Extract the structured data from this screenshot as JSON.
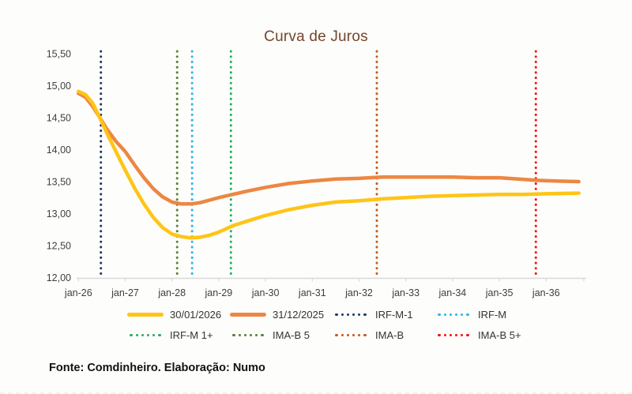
{
  "title": "Curva de Juros",
  "footer": "Fonte: Comdinheiro. Elaboração: Numo",
  "colors": {
    "title": "#74462A",
    "axis_text": "#3F3F3F",
    "axis_line": "#D9D9D9",
    "background": "#FDFDFB",
    "legend_text": "#333333"
  },
  "chart_data": {
    "type": "line",
    "title": "Curva de Juros",
    "x_axis": {
      "labels": [
        "jan-26",
        "jan-27",
        "jan-28",
        "jan-29",
        "jan-30",
        "jan-31",
        "jan-32",
        "jan-33",
        "jan-34",
        "jan-35",
        "jan-36"
      ],
      "unit": "years_from_jan-26",
      "range_years": [
        0,
        10.85
      ]
    },
    "y_axis": {
      "min": 12.0,
      "max": 15.5,
      "step": 0.5,
      "tick_labels": [
        "15,50",
        "15,00",
        "14,50",
        "14,00",
        "13,50",
        "13,00",
        "12,50",
        "12,00"
      ],
      "grid": false
    },
    "series": [
      {
        "name": "31/12/2025",
        "color": "#EC8742",
        "style": "solid",
        "points": [
          [
            0,
            14.88
          ],
          [
            0.15,
            14.82
          ],
          [
            0.3,
            14.68
          ],
          [
            0.45,
            14.51
          ],
          [
            0.6,
            14.33
          ],
          [
            0.8,
            14.13
          ],
          [
            1.0,
            13.97
          ],
          [
            1.2,
            13.76
          ],
          [
            1.4,
            13.56
          ],
          [
            1.6,
            13.39
          ],
          [
            1.8,
            13.26
          ],
          [
            2.0,
            13.18
          ],
          [
            2.2,
            13.15
          ],
          [
            2.4,
            13.15
          ],
          [
            2.6,
            13.17
          ],
          [
            2.8,
            13.21
          ],
          [
            3.0,
            13.25
          ],
          [
            3.3,
            13.3
          ],
          [
            3.6,
            13.35
          ],
          [
            4.0,
            13.41
          ],
          [
            4.5,
            13.47
          ],
          [
            5.0,
            13.51
          ],
          [
            5.5,
            13.54
          ],
          [
            6.0,
            13.55
          ],
          [
            6.5,
            13.57
          ],
          [
            7.0,
            13.57
          ],
          [
            7.5,
            13.57
          ],
          [
            8.0,
            13.57
          ],
          [
            8.5,
            13.56
          ],
          [
            9.0,
            13.56
          ],
          [
            9.4,
            13.54
          ],
          [
            9.8,
            13.52
          ],
          [
            10.2,
            13.51
          ],
          [
            10.7,
            13.5
          ]
        ]
      },
      {
        "name": "30/01/2026",
        "color": "#FFC417",
        "style": "solid",
        "points": [
          [
            0,
            14.91
          ],
          [
            0.15,
            14.86
          ],
          [
            0.3,
            14.73
          ],
          [
            0.45,
            14.51
          ],
          [
            0.6,
            14.27
          ],
          [
            0.8,
            13.97
          ],
          [
            1.0,
            13.68
          ],
          [
            1.2,
            13.4
          ],
          [
            1.4,
            13.15
          ],
          [
            1.6,
            12.94
          ],
          [
            1.8,
            12.78
          ],
          [
            2.0,
            12.68
          ],
          [
            2.2,
            12.64
          ],
          [
            2.4,
            12.62
          ],
          [
            2.6,
            12.63
          ],
          [
            2.8,
            12.66
          ],
          [
            3.0,
            12.71
          ],
          [
            3.3,
            12.81
          ],
          [
            3.6,
            12.88
          ],
          [
            4.0,
            12.97
          ],
          [
            4.5,
            13.06
          ],
          [
            5.0,
            13.13
          ],
          [
            5.5,
            13.18
          ],
          [
            6.0,
            13.2
          ],
          [
            6.5,
            13.23
          ],
          [
            7.0,
            13.25
          ],
          [
            7.5,
            13.27
          ],
          [
            8.0,
            13.28
          ],
          [
            8.5,
            13.29
          ],
          [
            9.0,
            13.3
          ],
          [
            9.5,
            13.3
          ],
          [
            10.0,
            13.31
          ],
          [
            10.7,
            13.32
          ]
        ]
      }
    ],
    "vertical_markers": [
      {
        "name": "IRF-M-1",
        "color": "#1F3864",
        "x_years": 0.48
      },
      {
        "name": "IMA-B 5",
        "color": "#548235",
        "x_years": 2.11
      },
      {
        "name": "IRF-M",
        "color": "#2FB3E9",
        "x_years": 2.43
      },
      {
        "name": "IRF-M 1+",
        "color": "#22AF63",
        "x_years": 3.26
      },
      {
        "name": "IMA-B",
        "color": "#C6591B",
        "x_years": 6.38
      },
      {
        "name": "IMA-B 5+",
        "color": "#FB1010",
        "x_years": 9.78
      }
    ],
    "legend_position": "bottom"
  },
  "legend": {
    "items": [
      {
        "label": "30/01/2026",
        "marker": "solid",
        "color": "#FFC417"
      },
      {
        "label": "31/12/2025",
        "marker": "solid",
        "color": "#EC8742"
      },
      {
        "label": "IRF-M-1",
        "marker": "dotted",
        "color": "#1F3864"
      },
      {
        "label": "IRF-M",
        "marker": "dotted",
        "color": "#2FB3E9"
      },
      {
        "label": "IRF-M 1+",
        "marker": "dotted",
        "color": "#22AF63"
      },
      {
        "label": "IMA-B 5",
        "marker": "dotted",
        "color": "#548235"
      },
      {
        "label": "IMA-B",
        "marker": "dotted",
        "color": "#C6591B"
      },
      {
        "label": "IMA-B 5+",
        "marker": "dotted",
        "color": "#FB1010"
      }
    ]
  }
}
